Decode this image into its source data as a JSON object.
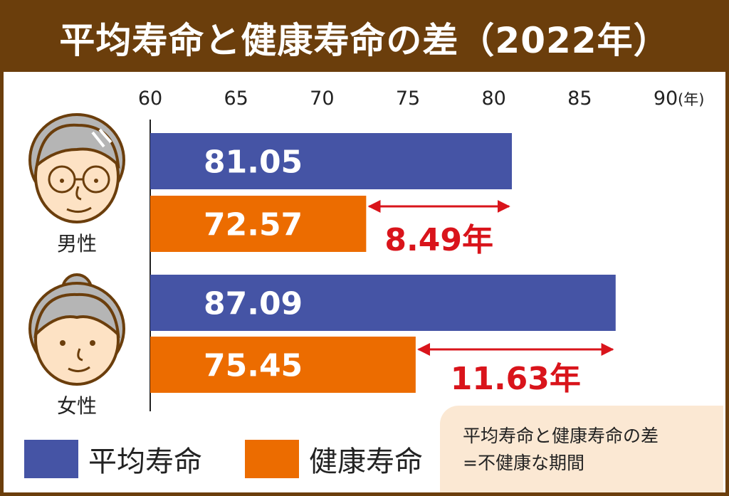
{
  "title": "平均寿命と健康寿命の差（2022年）",
  "colors": {
    "frame": "#6b3e0c",
    "average": "#4554a5",
    "healthy": "#ec6c00",
    "diff": "#d9141b",
    "note_bg": "#fbe8d3"
  },
  "chart_data": {
    "type": "bar",
    "orientation": "horizontal",
    "title": "平均寿命と健康寿命の差（2022年）",
    "x_ticks": [
      "60",
      "65",
      "70",
      "75",
      "80",
      "85",
      "90"
    ],
    "x_unit": "(年)",
    "xlim": [
      60,
      90
    ],
    "categories": [
      "男性",
      "女性"
    ],
    "series": [
      {
        "name": "平均寿命",
        "values": [
          81.05,
          87.09
        ],
        "labels": [
          "81.05",
          "87.09"
        ]
      },
      {
        "name": "健康寿命",
        "values": [
          72.57,
          75.45
        ],
        "labels": [
          "72.57",
          "75.45"
        ]
      }
    ],
    "differences": [
      "8.49年",
      "11.63年"
    ]
  },
  "legend": {
    "average": "平均寿命",
    "healthy": "健康寿命"
  },
  "note": {
    "line1": "平均寿命と健康寿命の差",
    "line2": "=不健康な期間"
  }
}
